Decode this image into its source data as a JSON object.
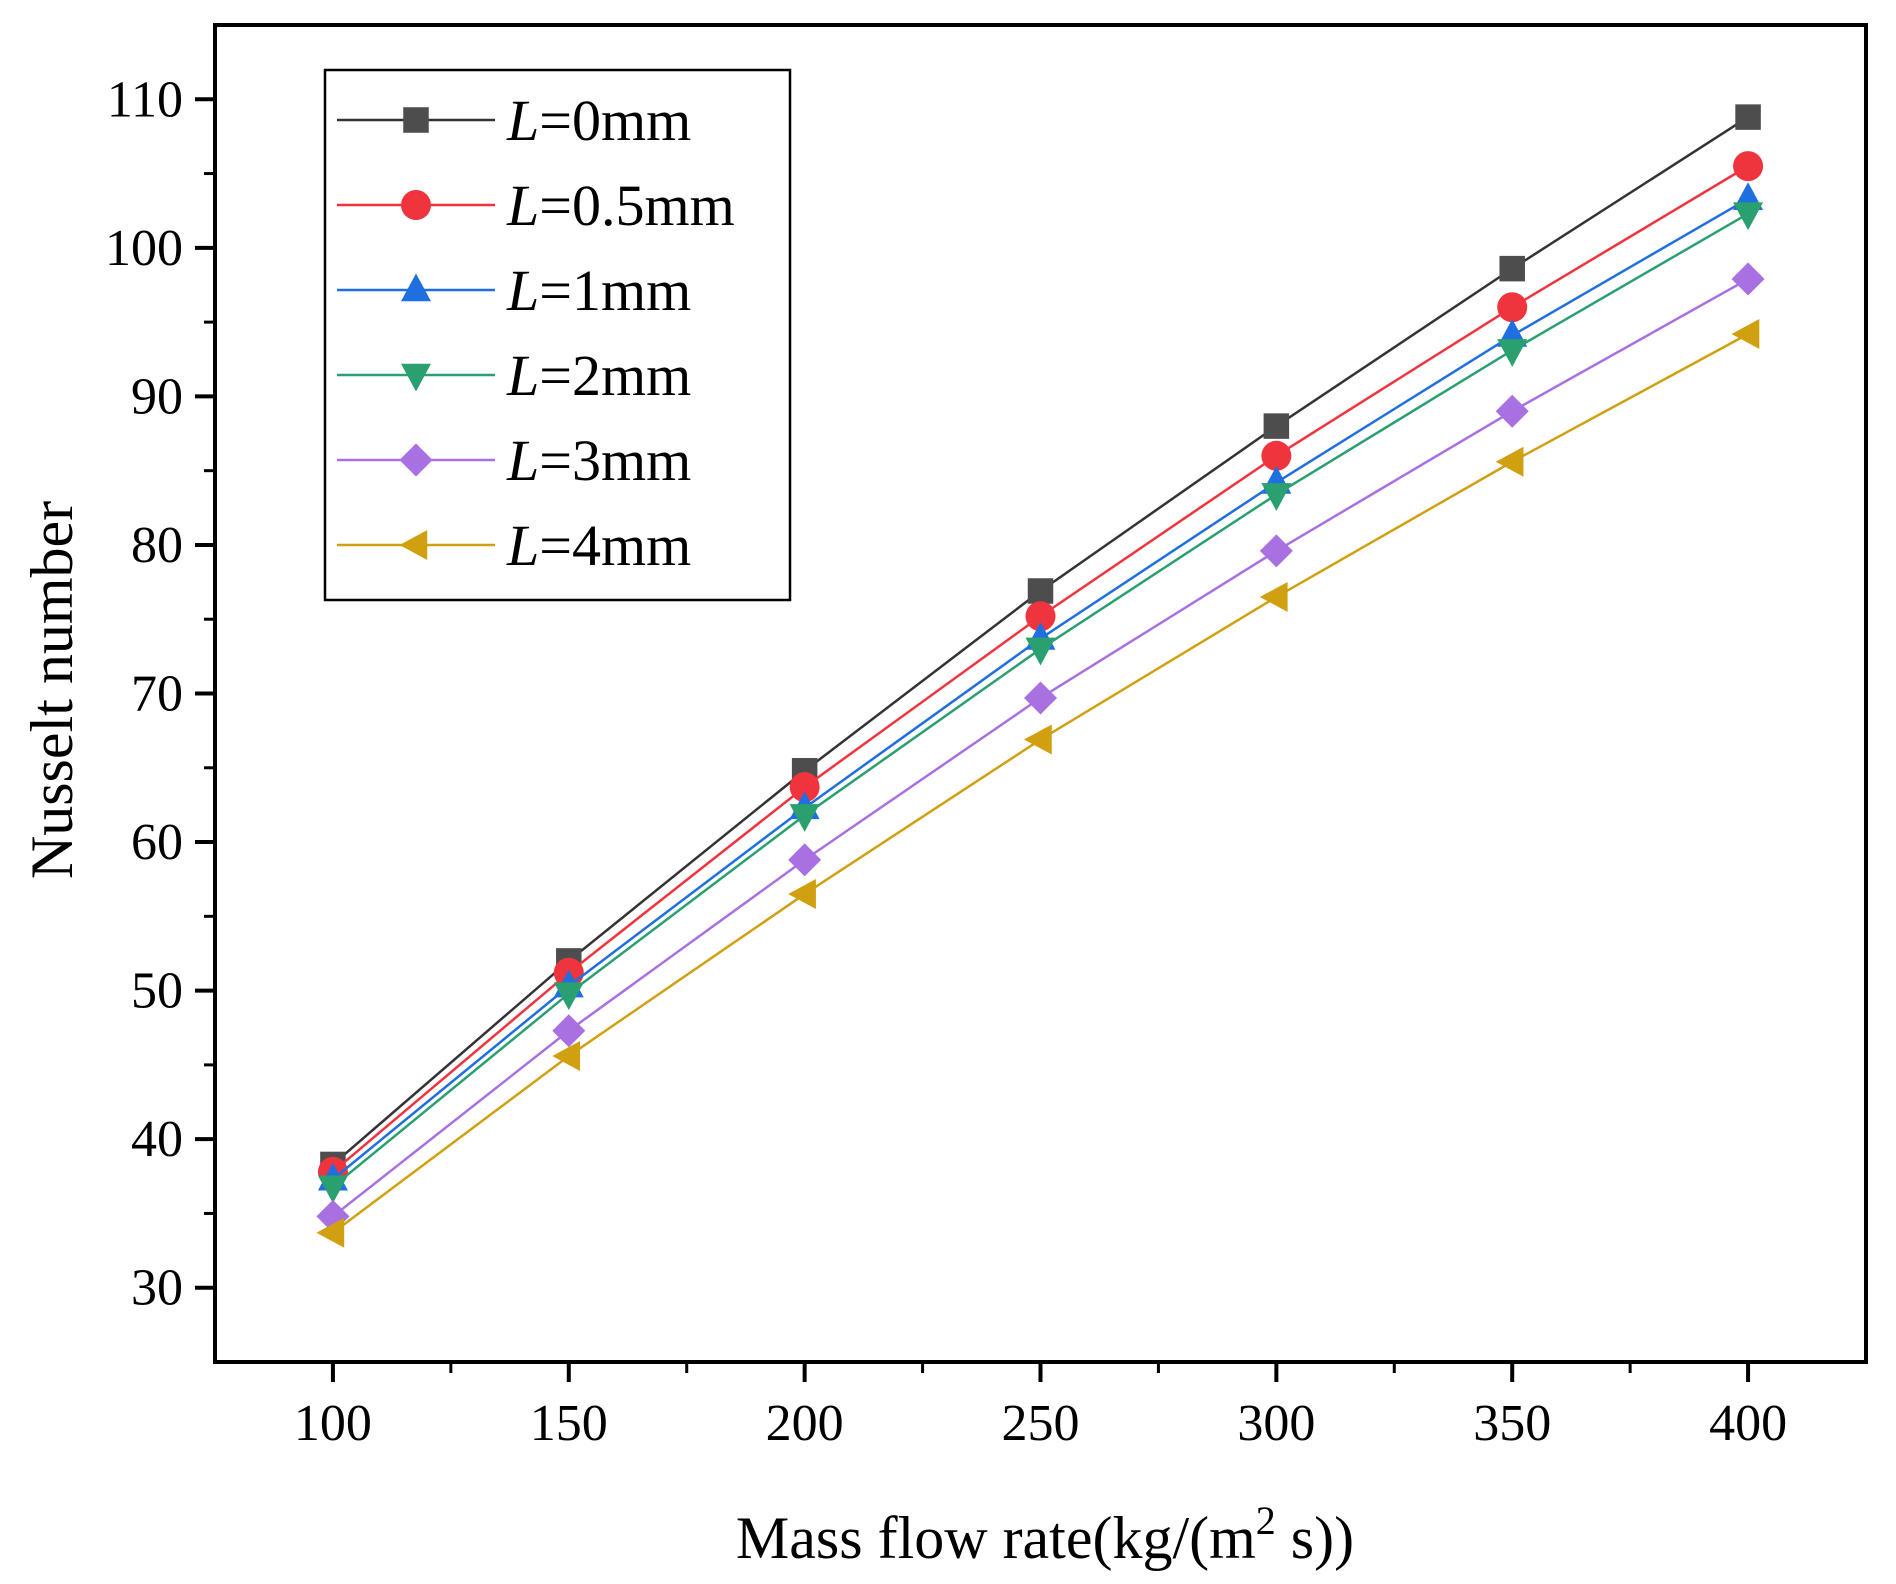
{
  "chart_data": {
    "type": "line",
    "xlabel": "Mass flow rate(kg/(m",
    "xlabel_sup": "2",
    "xlabel_tail": " s))",
    "ylabel": "Nusselt number",
    "x": [
      100,
      150,
      200,
      250,
      300,
      350,
      400
    ],
    "xlim": [
      75,
      425
    ],
    "ylim": [
      25,
      115
    ],
    "xticks": [
      100,
      150,
      200,
      250,
      300,
      350,
      400
    ],
    "yticks": [
      30,
      40,
      50,
      60,
      70,
      80,
      90,
      100,
      110
    ],
    "legend_position": "top-left",
    "series": [
      {
        "name": "L=0mm",
        "var": "L",
        "rest": "=0mm",
        "marker": "square",
        "color": "#4d4d4d",
        "line_color": "#333333",
        "values": [
          38.3,
          52.0,
          64.8,
          76.9,
          88.0,
          98.6,
          108.8
        ]
      },
      {
        "name": "L=0.5mm",
        "var": "L",
        "rest": "=0.5mm",
        "marker": "circle",
        "color": "#f0343e",
        "line_color": "#f0343e",
        "values": [
          37.8,
          51.2,
          63.7,
          75.2,
          86.0,
          96.0,
          105.5
        ]
      },
      {
        "name": "L=1mm",
        "var": "L",
        "rest": "=1mm",
        "marker": "triangle-up",
        "color": "#1f6fe0",
        "line_color": "#1f6fe0",
        "values": [
          37.3,
          50.3,
          62.3,
          73.7,
          84.2,
          94.1,
          103.3
        ]
      },
      {
        "name": "L=2mm",
        "var": "L",
        "rest": "=2mm",
        "marker": "triangle-down",
        "color": "#2aa070",
        "line_color": "#2aa070",
        "values": [
          36.8,
          49.8,
          61.8,
          73.0,
          83.4,
          93.1,
          102.3
        ]
      },
      {
        "name": "L=3mm",
        "var": "L",
        "rest": "=3mm",
        "marker": "diamond",
        "color": "#a870e0",
        "line_color": "#a870e0",
        "values": [
          34.8,
          47.3,
          58.8,
          69.7,
          79.6,
          89.0,
          97.9
        ]
      },
      {
        "name": "L=4mm",
        "var": "L",
        "rest": "=4mm",
        "marker": "triangle-left",
        "color": "#d0a010",
        "line_color": "#d0a010",
        "values": [
          33.7,
          45.6,
          56.5,
          66.9,
          76.5,
          85.6,
          94.2
        ]
      }
    ]
  }
}
